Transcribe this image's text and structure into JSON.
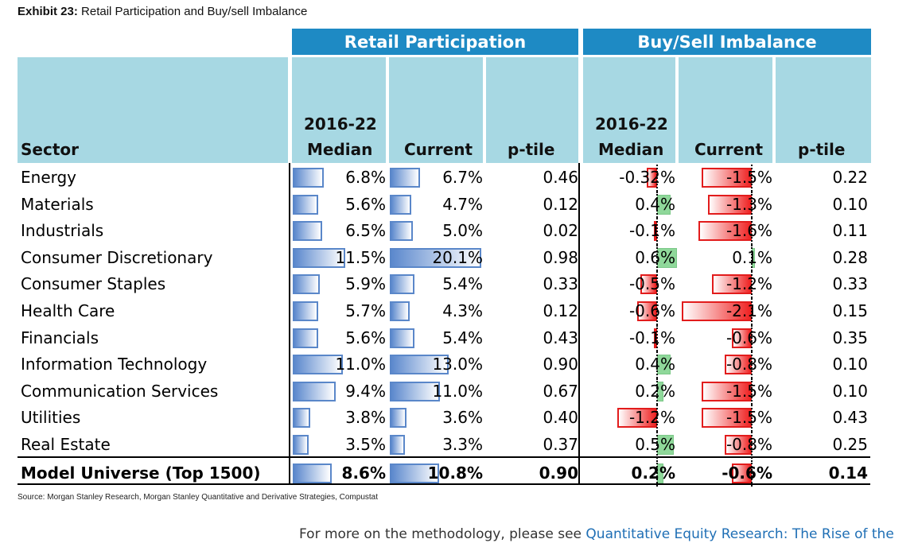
{
  "exhibit": {
    "label": "Exhibit 23:",
    "title": "Retail Participation and Buy/sell Imbalance"
  },
  "groups": {
    "retail": "Retail Participation",
    "imbalance": "Buy/Sell Imbalance"
  },
  "headers": {
    "sector": "Sector",
    "median_line1": "2016-22",
    "median_line2": "Median",
    "current": "Current",
    "ptile": "p-tile"
  },
  "colors": {
    "header_blue": "#1e8ac4",
    "header_light": "#a7d8e3",
    "bar_blue": "#5b88cd",
    "bar_red": "#ef2424",
    "bar_green": "#8fd89a"
  },
  "rows": [
    {
      "sector": "Energy",
      "rp_median": "6.8%",
      "rp_current": "6.7%",
      "rp_ptile": "0.46",
      "bs_median": "-0.32%",
      "bs_current": "-1.5%",
      "bs_ptile": "0.22",
      "v": [
        6.8,
        6.7,
        -0.32,
        -1.5
      ]
    },
    {
      "sector": "Materials",
      "rp_median": "5.6%",
      "rp_current": "4.7%",
      "rp_ptile": "0.12",
      "bs_median": "0.4%",
      "bs_current": "-1.3%",
      "bs_ptile": "0.10",
      "v": [
        5.6,
        4.7,
        0.4,
        -1.3
      ]
    },
    {
      "sector": "Industrials",
      "rp_median": "6.5%",
      "rp_current": "5.0%",
      "rp_ptile": "0.02",
      "bs_median": "-0.1%",
      "bs_current": "-1.6%",
      "bs_ptile": "0.11",
      "v": [
        6.5,
        5.0,
        -0.1,
        -1.6
      ]
    },
    {
      "sector": "Consumer Discretionary",
      "rp_median": "11.5%",
      "rp_current": "20.1%",
      "rp_ptile": "0.98",
      "bs_median": "0.6%",
      "bs_current": "0.1%",
      "bs_ptile": "0.28",
      "v": [
        11.5,
        20.1,
        0.6,
        0.1
      ]
    },
    {
      "sector": "Consumer Staples",
      "rp_median": "5.9%",
      "rp_current": "5.4%",
      "rp_ptile": "0.33",
      "bs_median": "-0.5%",
      "bs_current": "-1.2%",
      "bs_ptile": "0.33",
      "v": [
        5.9,
        5.4,
        -0.5,
        -1.2
      ]
    },
    {
      "sector": "Health Care",
      "rp_median": "5.7%",
      "rp_current": "4.3%",
      "rp_ptile": "0.12",
      "bs_median": "-0.6%",
      "bs_current": "-2.1%",
      "bs_ptile": "0.15",
      "v": [
        5.7,
        4.3,
        -0.6,
        -2.1
      ]
    },
    {
      "sector": "Financials",
      "rp_median": "5.6%",
      "rp_current": "5.4%",
      "rp_ptile": "0.43",
      "bs_median": "-0.1%",
      "bs_current": "-0.6%",
      "bs_ptile": "0.35",
      "v": [
        5.6,
        5.4,
        -0.1,
        -0.6
      ]
    },
    {
      "sector": "Information Technology",
      "rp_median": "11.0%",
      "rp_current": "13.0%",
      "rp_ptile": "0.90",
      "bs_median": "0.4%",
      "bs_current": "-0.8%",
      "bs_ptile": "0.10",
      "v": [
        11.0,
        13.0,
        0.4,
        -0.8
      ]
    },
    {
      "sector": "Communication Services",
      "rp_median": "9.4%",
      "rp_current": "11.0%",
      "rp_ptile": "0.67",
      "bs_median": "0.2%",
      "bs_current": "-1.5%",
      "bs_ptile": "0.10",
      "v": [
        9.4,
        11.0,
        0.2,
        -1.5
      ]
    },
    {
      "sector": "Utilities",
      "rp_median": "3.8%",
      "rp_current": "3.6%",
      "rp_ptile": "0.40",
      "bs_median": "-1.2%",
      "bs_current": "-1.5%",
      "bs_ptile": "0.43",
      "v": [
        3.8,
        3.6,
        -1.2,
        -1.5
      ]
    },
    {
      "sector": "Real Estate",
      "rp_median": "3.5%",
      "rp_current": "3.3%",
      "rp_ptile": "0.37",
      "bs_median": "0.5%",
      "bs_current": "-0.8%",
      "bs_ptile": "0.25",
      "v": [
        3.5,
        3.3,
        0.5,
        -0.8
      ]
    }
  ],
  "total": {
    "sector": "Model Universe (Top 1500)",
    "rp_median": "8.6%",
    "rp_current": "10.8%",
    "rp_ptile": "0.90",
    "bs_median": "0.2%",
    "bs_current": "-0.6%",
    "bs_ptile": "0.14",
    "v": [
      8.6,
      10.8,
      0.2,
      -0.6
    ]
  },
  "source": "Source: Morgan Stanley Research, Morgan Stanley Quantitative and Derivative Strategies, Compustat",
  "footer": {
    "text": "For more on the methodology, please see ",
    "link": "Quantitative Equity Research: The Rise of the"
  }
}
